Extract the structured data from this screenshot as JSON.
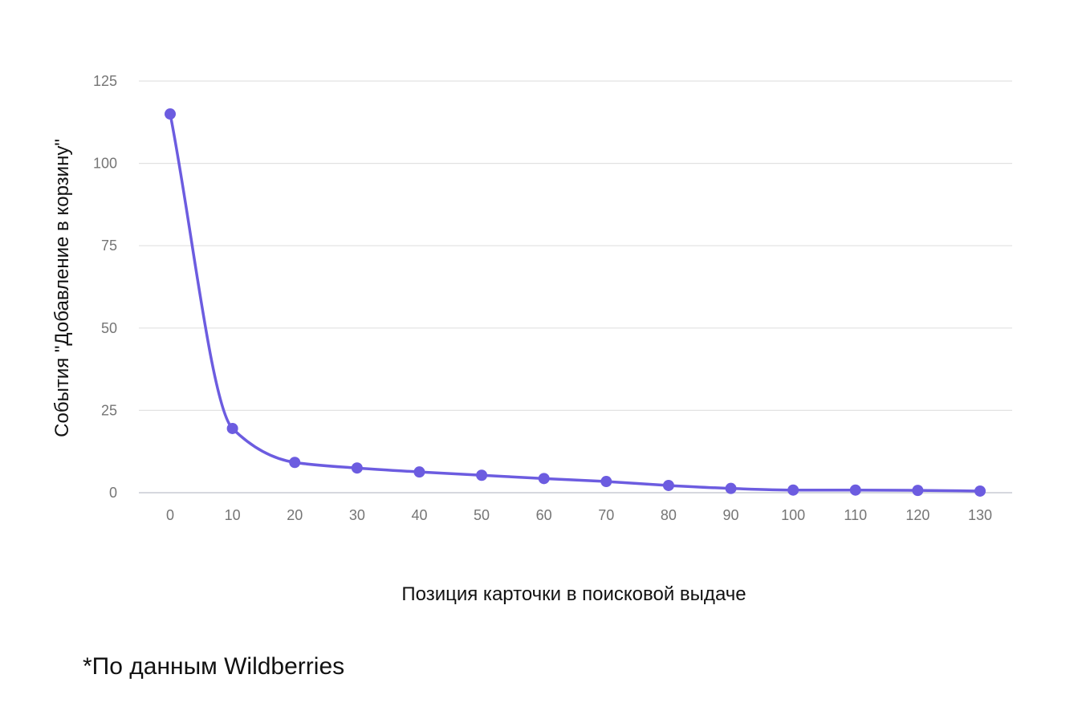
{
  "chart_data": {
    "type": "line",
    "title": "",
    "xlabel": "Позиция карточки в поисковой выдаче",
    "ylabel": "События \"Добавление в корзину\"",
    "x": [
      0,
      10,
      20,
      30,
      40,
      50,
      60,
      70,
      80,
      90,
      100,
      110,
      120,
      130
    ],
    "series": [
      {
        "values": [
          115,
          19.5,
          9.2,
          7.5,
          6.3,
          5.3,
          4.3,
          3.4,
          2.2,
          1.3,
          0.8,
          0.8,
          0.7,
          0.5
        ]
      }
    ],
    "xticks": [
      "0",
      "10",
      "20",
      "30",
      "40",
      "50",
      "60",
      "70",
      "80",
      "90",
      "100",
      "110",
      "120",
      "130"
    ],
    "yticks": [
      "0",
      "25",
      "50",
      "75",
      "100",
      "125"
    ],
    "xlim": [
      0,
      130
    ],
    "ylim": [
      0,
      125
    ],
    "grid": true,
    "smooth": true,
    "line_color": "#6c5ce0",
    "grid_color": "#e2e2e2"
  },
  "footnote": "*По данным Wildberries"
}
